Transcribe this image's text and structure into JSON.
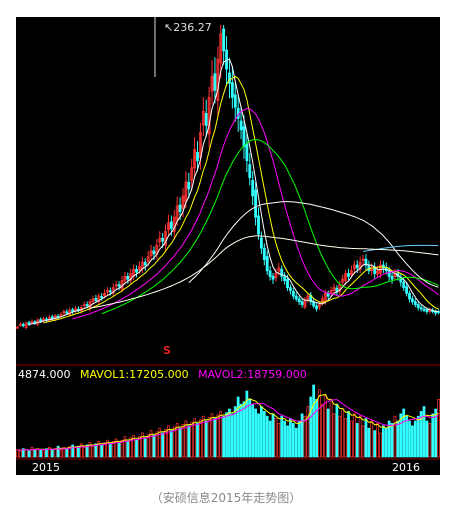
{
  "caption": "（安硕信息2015年走势图）",
  "chart_data": {
    "type": "candlestick",
    "price": {
      "peak_label": "236.27",
      "peak_value": 236.27,
      "ma_colors": [
        "#ffffff",
        "#ffff00",
        "#ff00ff",
        "#00ff00",
        "#ffffff",
        "#66ccff",
        "#ffffee"
      ],
      "close_series": [
        22,
        24,
        23,
        25,
        24,
        26,
        25,
        27,
        26,
        28,
        27,
        29,
        28,
        30,
        29,
        31,
        33,
        32,
        34,
        33,
        35,
        34,
        36,
        38,
        37,
        40,
        42,
        41,
        44,
        43,
        46,
        48,
        47,
        50,
        52,
        51,
        55,
        58,
        56,
        60,
        63,
        61,
        65,
        68,
        66,
        72,
        76,
        74,
        80,
        85,
        83,
        90,
        96,
        92,
        100,
        108,
        104,
        115,
        125,
        120,
        135,
        148,
        140,
        160,
        175,
        165,
        185,
        200,
        190,
        212,
        230,
        218,
        205,
        195,
        185,
        178,
        170,
        162,
        150,
        140,
        128,
        115,
        100,
        88,
        78,
        70,
        62,
        58,
        56,
        60,
        64,
        58,
        55,
        50,
        48,
        44,
        42,
        40,
        38,
        41,
        44,
        40,
        37,
        35,
        38,
        42,
        46,
        44,
        48,
        50,
        47,
        52,
        56,
        60,
        58,
        62,
        66,
        64,
        68,
        70,
        66,
        62,
        64,
        60,
        62,
        66,
        64,
        62,
        58,
        56,
        60,
        58,
        54,
        50,
        46,
        42,
        40,
        38,
        36,
        35,
        34,
        33,
        34,
        33,
        32,
        33
      ]
    },
    "volume": {
      "header_value": "4874.000",
      "mavol1_label": "MAVOL1:17205.000",
      "mavol2_label": "MAVOL2:18759.000",
      "mavol1_color": "#ffff00",
      "mavol2_color": "#ff00ff",
      "values": [
        6,
        5,
        7,
        6,
        5,
        8,
        6,
        7,
        6,
        5,
        7,
        8,
        6,
        7,
        9,
        6,
        8,
        7,
        9,
        10,
        8,
        9,
        11,
        8,
        10,
        12,
        9,
        11,
        13,
        10,
        12,
        14,
        11,
        13,
        15,
        12,
        14,
        17,
        13,
        16,
        18,
        14,
        17,
        20,
        16,
        19,
        22,
        18,
        21,
        24,
        20,
        23,
        26,
        22,
        25,
        28,
        24,
        27,
        30,
        26,
        29,
        32,
        28,
        31,
        34,
        30,
        33,
        36,
        32,
        35,
        38,
        34,
        37,
        40,
        36,
        42,
        50,
        44,
        46,
        55,
        48,
        44,
        40,
        36,
        42,
        38,
        34,
        30,
        36,
        32,
        28,
        34,
        30,
        26,
        32,
        28,
        24,
        30,
        36,
        34,
        42,
        50,
        60,
        48,
        56,
        44,
        52,
        40,
        48,
        36,
        44,
        34,
        40,
        32,
        38,
        30,
        36,
        28,
        34,
        26,
        32,
        24,
        30,
        22,
        28,
        20,
        26,
        24,
        30,
        28,
        34,
        30,
        36,
        40,
        34,
        30,
        26,
        30,
        34,
        38,
        42,
        30,
        28,
        36,
        40,
        48
      ]
    },
    "x_labels": [
      "2015",
      "2016"
    ],
    "marker_symbol": "S"
  }
}
